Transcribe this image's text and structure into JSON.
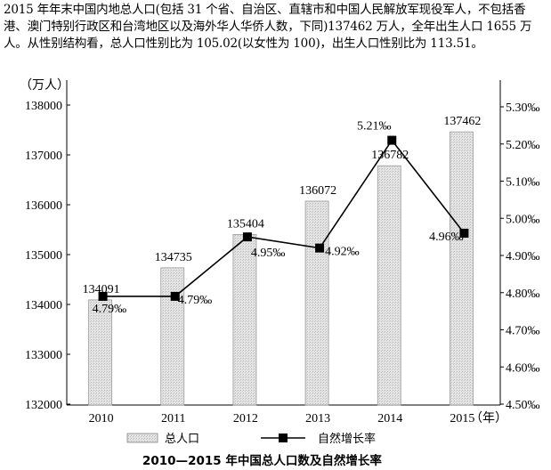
{
  "intro_text": "2015 年年末中国内地总人口(包括 31 个省、自治区、直辖市和中国人民解放军现役军人，不包括香港、澳门特别行政区和台湾地区以及海外华人华侨人数，下同)137462 万人，全年出生人口 1655 万人。从性别结构看，总人口性别比为 105.02(以女性为 100)，出生人口性别比为 113.51。",
  "chart_data": {
    "type": "bar",
    "title": "2010—2015 年中国总人口数及自然增长率",
    "categories": [
      "2010",
      "2011",
      "2012",
      "2013",
      "2014",
      "2015"
    ],
    "x_unit_label": "（年）",
    "ylabel_left": "（万人）",
    "ylim_left": [
      132000,
      138000
    ],
    "yticks_left": [
      132000,
      133000,
      134000,
      135000,
      136000,
      137000,
      138000
    ],
    "ylim_right": [
      4.5,
      5.3
    ],
    "yticks_right_labels": [
      "4.50‰",
      "4.60‰",
      "4.70‰",
      "4.80‰",
      "4.90‰",
      "5.00‰",
      "5.10‰",
      "5.20‰",
      "5.30‰"
    ],
    "yticks_right": [
      4.5,
      4.6,
      4.7,
      4.8,
      4.9,
      5.0,
      5.1,
      5.2,
      5.3
    ],
    "series": [
      {
        "name": "总人口",
        "kind": "bar",
        "values": [
          134091,
          134735,
          135404,
          136072,
          136782,
          137462
        ],
        "labels": [
          "134091",
          "134735",
          "135404",
          "136072",
          "136782",
          "137462"
        ],
        "color": "#dcdcdc"
      },
      {
        "name": "自然增长率",
        "kind": "line",
        "axis": "right",
        "values": [
          4.79,
          4.79,
          4.95,
          4.92,
          5.21,
          4.96
        ],
        "labels": [
          "4.79‰",
          "4.79‰",
          "4.95‰",
          "4.92‰",
          "5.21‰",
          "4.96‰"
        ],
        "color": "#000000"
      }
    ],
    "grid": false,
    "legend_position": "bottom"
  }
}
